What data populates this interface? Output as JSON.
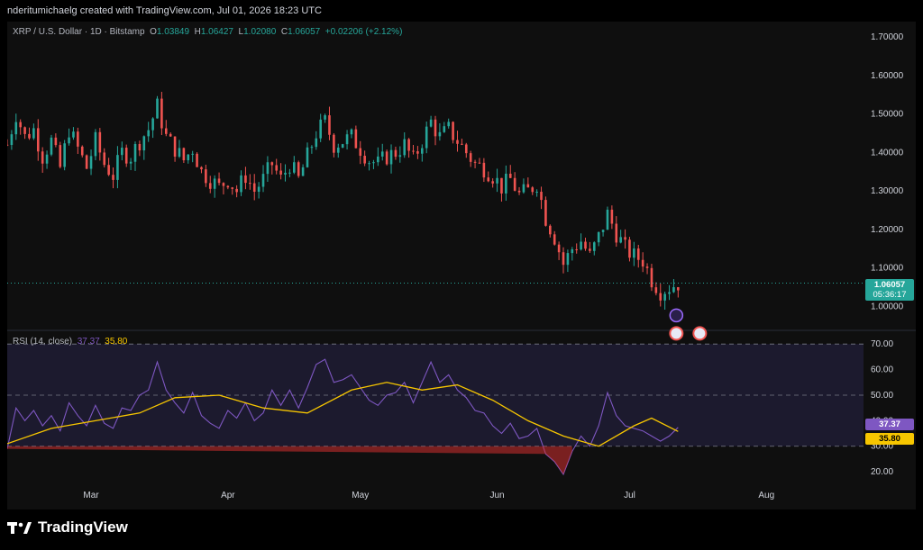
{
  "header": {
    "author_line": "nderitumichaelg created with TradingView.com, Jul 01, 2026 18:23 UTC"
  },
  "legend": {
    "symbol": "XRP / U.S. Dollar · 1D · Bitstamp",
    "o_label": "O",
    "o": "1.03849",
    "h_label": "H",
    "h": "1.06427",
    "l_label": "L",
    "l": "1.02080",
    "c_label": "C",
    "c": "1.06057",
    "change": "+0.02206 (+2.12%)"
  },
  "price_badge": {
    "price": "1.06057",
    "countdown": "05:36:17"
  },
  "rsi_legend": {
    "label": "RSI (14, close)",
    "rsi": "37.37",
    "ma": "35.80"
  },
  "rsi_badges": {
    "rsi": "37.37",
    "ma": "35.80"
  },
  "brand": {
    "name": "TradingView"
  },
  "colors": {
    "up": "#26a69a",
    "down": "#ef5350",
    "rsi_line": "#7e57c2",
    "rsi_ma": "#f7c600",
    "band_fill": "#1c1a2e",
    "background": "#0f0f0f"
  },
  "chart_data": [
    {
      "type": "candlestick",
      "title": "XRP / U.S. Dollar · 1D · Bitstamp",
      "x_axis": {
        "type": "date",
        "range": [
          "2026-02-10",
          "2026-08-23"
        ],
        "tick_labels": [
          "Mar",
          "Apr",
          "May",
          "Jun",
          "Jul",
          "Aug"
        ],
        "tick_dates": [
          "2026-03-01",
          "2026-04-01",
          "2026-05-01",
          "2026-06-01",
          "2026-07-01",
          "2026-08-01"
        ]
      },
      "y_axis": {
        "range": [
          0.94,
          1.74
        ],
        "tick_labels": [
          "1.70000",
          "1.60000",
          "1.50000",
          "1.40000",
          "1.30000",
          "1.20000",
          "1.10000",
          "1.00000"
        ],
        "tick_values": [
          1.7,
          1.6,
          1.5,
          1.4,
          1.3,
          1.2,
          1.1,
          1.0
        ]
      },
      "grid": false,
      "last_close": 1.06057,
      "close_path": [
        [
          "2026-02-10",
          1.42
        ],
        [
          "2026-02-12",
          1.5
        ],
        [
          "2026-02-14",
          1.44
        ],
        [
          "2026-02-16",
          1.46
        ],
        [
          "2026-02-18",
          1.39
        ],
        [
          "2026-02-20",
          1.43
        ],
        [
          "2026-02-22",
          1.36
        ],
        [
          "2026-02-24",
          1.46
        ],
        [
          "2026-02-26",
          1.41
        ],
        [
          "2026-02-28",
          1.36
        ],
        [
          "2026-03-02",
          1.43
        ],
        [
          "2026-03-04",
          1.37
        ],
        [
          "2026-03-06",
          1.34
        ],
        [
          "2026-03-08",
          1.4
        ],
        [
          "2026-03-10",
          1.39
        ],
        [
          "2026-03-12",
          1.43
        ],
        [
          "2026-03-14",
          1.46
        ],
        [
          "2026-03-16",
          1.52
        ],
        [
          "2026-03-18",
          1.44
        ],
        [
          "2026-03-20",
          1.41
        ],
        [
          "2026-03-22",
          1.38
        ],
        [
          "2026-03-24",
          1.41
        ],
        [
          "2026-03-26",
          1.35
        ],
        [
          "2026-03-28",
          1.33
        ],
        [
          "2026-03-30",
          1.31
        ],
        [
          "2026-04-01",
          1.33
        ],
        [
          "2026-04-03",
          1.3
        ],
        [
          "2026-04-05",
          1.34
        ],
        [
          "2026-04-07",
          1.3
        ],
        [
          "2026-04-09",
          1.33
        ],
        [
          "2026-04-11",
          1.37
        ],
        [
          "2026-04-13",
          1.33
        ],
        [
          "2026-04-15",
          1.37
        ],
        [
          "2026-04-17",
          1.33
        ],
        [
          "2026-04-19",
          1.39
        ],
        [
          "2026-04-21",
          1.45
        ],
        [
          "2026-04-23",
          1.48
        ],
        [
          "2026-04-25",
          1.42
        ],
        [
          "2026-04-27",
          1.43
        ],
        [
          "2026-04-29",
          1.44
        ],
        [
          "2026-05-01",
          1.41
        ],
        [
          "2026-05-03",
          1.38
        ],
        [
          "2026-05-05",
          1.37
        ],
        [
          "2026-05-07",
          1.39
        ],
        [
          "2026-05-09",
          1.4
        ],
        [
          "2026-05-11",
          1.42
        ],
        [
          "2026-05-13",
          1.38
        ],
        [
          "2026-05-15",
          1.43
        ],
        [
          "2026-05-17",
          1.48
        ],
        [
          "2026-05-19",
          1.44
        ],
        [
          "2026-05-21",
          1.46
        ],
        [
          "2026-05-23",
          1.43
        ],
        [
          "2026-05-25",
          1.4
        ],
        [
          "2026-05-27",
          1.37
        ],
        [
          "2026-05-29",
          1.36
        ],
        [
          "2026-05-31",
          1.34
        ],
        [
          "2026-06-02",
          1.31
        ],
        [
          "2026-06-04",
          1.33
        ],
        [
          "2026-06-06",
          1.29
        ],
        [
          "2026-06-08",
          1.3
        ],
        [
          "2026-06-10",
          1.32
        ],
        [
          "2026-06-12",
          1.23
        ],
        [
          "2026-06-14",
          1.18
        ],
        [
          "2026-06-16",
          1.11
        ],
        [
          "2026-06-18",
          1.15
        ],
        [
          "2026-06-20",
          1.17
        ],
        [
          "2026-06-22",
          1.13
        ],
        [
          "2026-06-24",
          1.18
        ],
        [
          "2026-06-26",
          1.24
        ],
        [
          "2026-06-28",
          1.19
        ],
        [
          "2026-06-30",
          1.15
        ],
        [
          "2026-07-02",
          1.13
        ],
        [
          "2026-07-04",
          1.12
        ],
        [
          "2026-07-06",
          1.07
        ],
        [
          "2026-07-08",
          1.04
        ],
        [
          "2026-07-10",
          1.05
        ],
        [
          "2026-07-12",
          1.06
        ]
      ],
      "markers": [
        "lightning",
        "us-flag",
        "us-flag"
      ]
    },
    {
      "type": "line",
      "title": "RSI (14, close)",
      "y_axis": {
        "range": [
          13,
          75
        ],
        "tick_labels": [
          "70.00",
          "60.00",
          "50.00",
          "40.00",
          "30.00",
          "20.00"
        ],
        "tick_values": [
          70,
          60,
          50,
          40,
          30,
          20
        ]
      },
      "bands": {
        "upper": 70,
        "middle": 50,
        "lower": 30
      },
      "series": [
        {
          "name": "RSI",
          "values": [
            [
              "2026-02-10",
              29
            ],
            [
              "2026-02-12",
              45
            ],
            [
              "2026-02-14",
              40
            ],
            [
              "2026-02-16",
              44
            ],
            [
              "2026-02-18",
              38
            ],
            [
              "2026-02-20",
              42
            ],
            [
              "2026-02-22",
              36
            ],
            [
              "2026-02-24",
              47
            ],
            [
              "2026-02-26",
              42
            ],
            [
              "2026-02-28",
              38
            ],
            [
              "2026-03-02",
              46
            ],
            [
              "2026-03-04",
              39
            ],
            [
              "2026-03-06",
              37
            ],
            [
              "2026-03-08",
              45
            ],
            [
              "2026-03-10",
              44
            ],
            [
              "2026-03-12",
              50
            ],
            [
              "2026-03-14",
              52
            ],
            [
              "2026-03-16",
              63
            ],
            [
              "2026-03-18",
              52
            ],
            [
              "2026-03-20",
              47
            ],
            [
              "2026-03-22",
              43
            ],
            [
              "2026-03-24",
              51
            ],
            [
              "2026-03-26",
              42
            ],
            [
              "2026-03-28",
              39
            ],
            [
              "2026-03-30",
              37
            ],
            [
              "2026-04-01",
              44
            ],
            [
              "2026-04-03",
              41
            ],
            [
              "2026-04-05",
              47
            ],
            [
              "2026-04-07",
              40
            ],
            [
              "2026-04-09",
              43
            ],
            [
              "2026-04-11",
              52
            ],
            [
              "2026-04-13",
              46
            ],
            [
              "2026-04-15",
              52
            ],
            [
              "2026-04-17",
              45
            ],
            [
              "2026-04-19",
              53
            ],
            [
              "2026-04-21",
              62
            ],
            [
              "2026-04-23",
              64
            ],
            [
              "2026-04-25",
              55
            ],
            [
              "2026-04-27",
              56
            ],
            [
              "2026-04-29",
              58
            ],
            [
              "2026-05-01",
              53
            ],
            [
              "2026-05-03",
              48
            ],
            [
              "2026-05-05",
              46
            ],
            [
              "2026-05-07",
              50
            ],
            [
              "2026-05-09",
              51
            ],
            [
              "2026-05-11",
              55
            ],
            [
              "2026-05-13",
              47
            ],
            [
              "2026-05-15",
              55
            ],
            [
              "2026-05-17",
              63
            ],
            [
              "2026-05-19",
              55
            ],
            [
              "2026-05-21",
              58
            ],
            [
              "2026-05-23",
              52
            ],
            [
              "2026-05-25",
              49
            ],
            [
              "2026-05-27",
              44
            ],
            [
              "2026-05-29",
              43
            ],
            [
              "2026-05-31",
              38
            ],
            [
              "2026-06-02",
              35
            ],
            [
              "2026-06-04",
              39
            ],
            [
              "2026-06-06",
              33
            ],
            [
              "2026-06-08",
              34
            ],
            [
              "2026-06-10",
              37
            ],
            [
              "2026-06-12",
              27
            ],
            [
              "2026-06-14",
              24
            ],
            [
              "2026-06-16",
              19
            ],
            [
              "2026-06-18",
              28
            ],
            [
              "2026-06-20",
              34
            ],
            [
              "2026-06-22",
              30
            ],
            [
              "2026-06-24",
              38
            ],
            [
              "2026-06-26",
              51
            ],
            [
              "2026-06-28",
              42
            ],
            [
              "2026-06-30",
              38
            ],
            [
              "2026-07-02",
              37
            ],
            [
              "2026-07-04",
              36
            ],
            [
              "2026-07-06",
              34
            ],
            [
              "2026-07-08",
              32
            ],
            [
              "2026-07-10",
              34
            ],
            [
              "2026-07-12",
              37.37
            ]
          ]
        },
        {
          "name": "RSI-based MA",
          "values": [
            [
              "2026-02-10",
              31
            ],
            [
              "2026-02-20",
              37
            ],
            [
              "2026-03-02",
              40
            ],
            [
              "2026-03-12",
              43
            ],
            [
              "2026-03-20",
              49
            ],
            [
              "2026-03-30",
              50
            ],
            [
              "2026-04-09",
              45
            ],
            [
              "2026-04-19",
              43
            ],
            [
              "2026-04-29",
              52
            ],
            [
              "2026-05-07",
              55
            ],
            [
              "2026-05-15",
              52
            ],
            [
              "2026-05-23",
              54
            ],
            [
              "2026-05-31",
              48
            ],
            [
              "2026-06-08",
              40
            ],
            [
              "2026-06-16",
              34
            ],
            [
              "2026-06-24",
              30
            ],
            [
              "2026-07-02",
              38
            ],
            [
              "2026-07-06",
              41
            ],
            [
              "2026-07-12",
              35.8
            ]
          ]
        }
      ]
    }
  ]
}
